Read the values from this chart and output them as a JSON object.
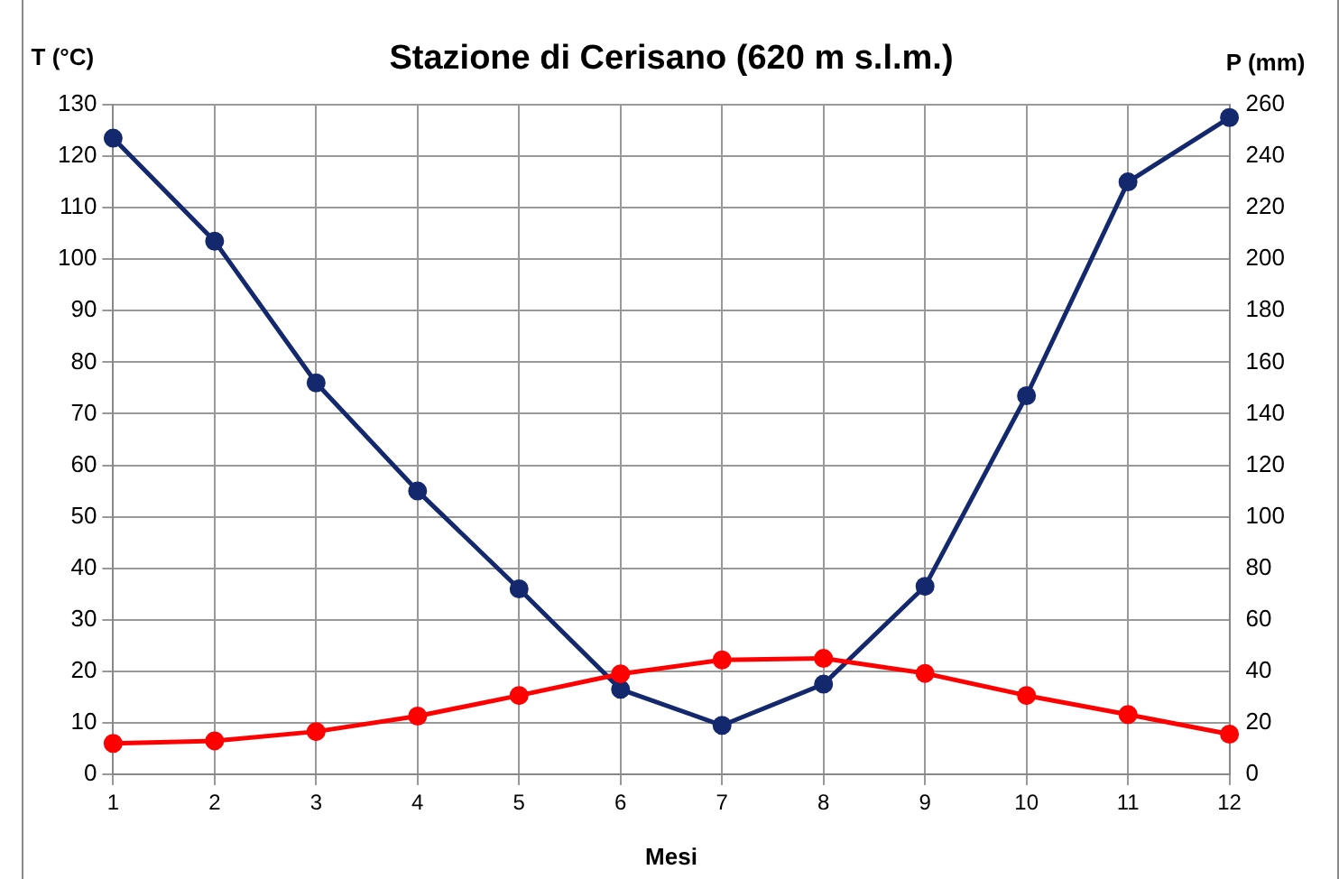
{
  "chart_data": {
    "type": "line",
    "title": "Stazione di Cerisano (620 m s.l.m.)",
    "xlabel": "Mesi",
    "ylabel": "T (°C)",
    "y2label": "P (mm)",
    "categories": [
      "1",
      "2",
      "3",
      "4",
      "5",
      "6",
      "7",
      "8",
      "9",
      "10",
      "11",
      "12"
    ],
    "series": [
      {
        "color": "#ff0000",
        "values": [
          6,
          6.5,
          8.3,
          11.3,
          15.3,
          19.5,
          22.2,
          22.5,
          19.6,
          15.3,
          11.6,
          7.8
        ]
      },
      {
        "color": "#14286e",
        "axis": "y2",
        "values": [
          247,
          207,
          152,
          110,
          72,
          33,
          19,
          35,
          73,
          147,
          230,
          255
        ]
      }
    ],
    "ylim": [
      0,
      130
    ],
    "yticks": [
      0,
      10,
      20,
      30,
      40,
      50,
      60,
      70,
      80,
      90,
      100,
      110,
      120,
      130
    ],
    "y2lim": [
      0,
      260
    ],
    "y2ticks": [
      0,
      20,
      40,
      60,
      80,
      100,
      120,
      140,
      160,
      180,
      200,
      220,
      240,
      260
    ],
    "grid": true,
    "legend": false,
    "marker": "circle",
    "line_style": "solid"
  }
}
